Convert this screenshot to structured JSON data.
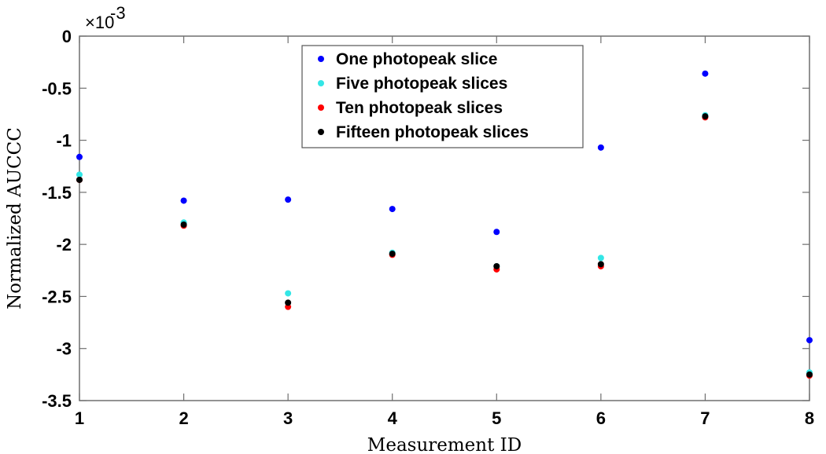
{
  "chart_data": {
    "type": "scatter",
    "title": "",
    "xlabel": "Measurement ID",
    "ylabel": "Normalized AUCCC",
    "xlim": [
      1,
      8
    ],
    "ylim": [
      -3.5,
      0
    ],
    "x_ticks": [
      "1",
      "2",
      "3",
      "4",
      "5",
      "6",
      "7",
      "8"
    ],
    "y_ticks": [
      "0",
      "-0.5",
      "-1",
      "-1.5",
      "-2",
      "-2.5",
      "-3",
      "-3.5"
    ],
    "y_multiplier_label": "×10-3",
    "y_multiplier_base": "×10",
    "y_multiplier_exp": "-3",
    "grid": false,
    "legend_position": "top-center",
    "x": [
      1,
      2,
      3,
      4,
      5,
      6,
      7,
      8
    ],
    "series": [
      {
        "name": "One photopeak slice",
        "color": "#0000ff",
        "values": [
          -1.16,
          -1.58,
          -1.57,
          -1.66,
          -1.88,
          -1.07,
          -0.36,
          -2.92
        ]
      },
      {
        "name": "Five photopeak slices",
        "color": "#33e6e6",
        "values": [
          -1.33,
          -1.79,
          -2.47,
          -2.08,
          -2.21,
          -2.13,
          -0.76,
          -3.23
        ]
      },
      {
        "name": "Ten photopeak slices",
        "color": "#ff0000",
        "values": [
          -1.38,
          -1.82,
          -2.6,
          -2.1,
          -2.24,
          -2.21,
          -0.78,
          -3.26
        ]
      },
      {
        "name": "Fifteen photopeak slices",
        "color": "#000000",
        "values": [
          -1.38,
          -1.81,
          -2.56,
          -2.09,
          -2.21,
          -2.19,
          -0.77,
          -3.25
        ]
      }
    ]
  }
}
